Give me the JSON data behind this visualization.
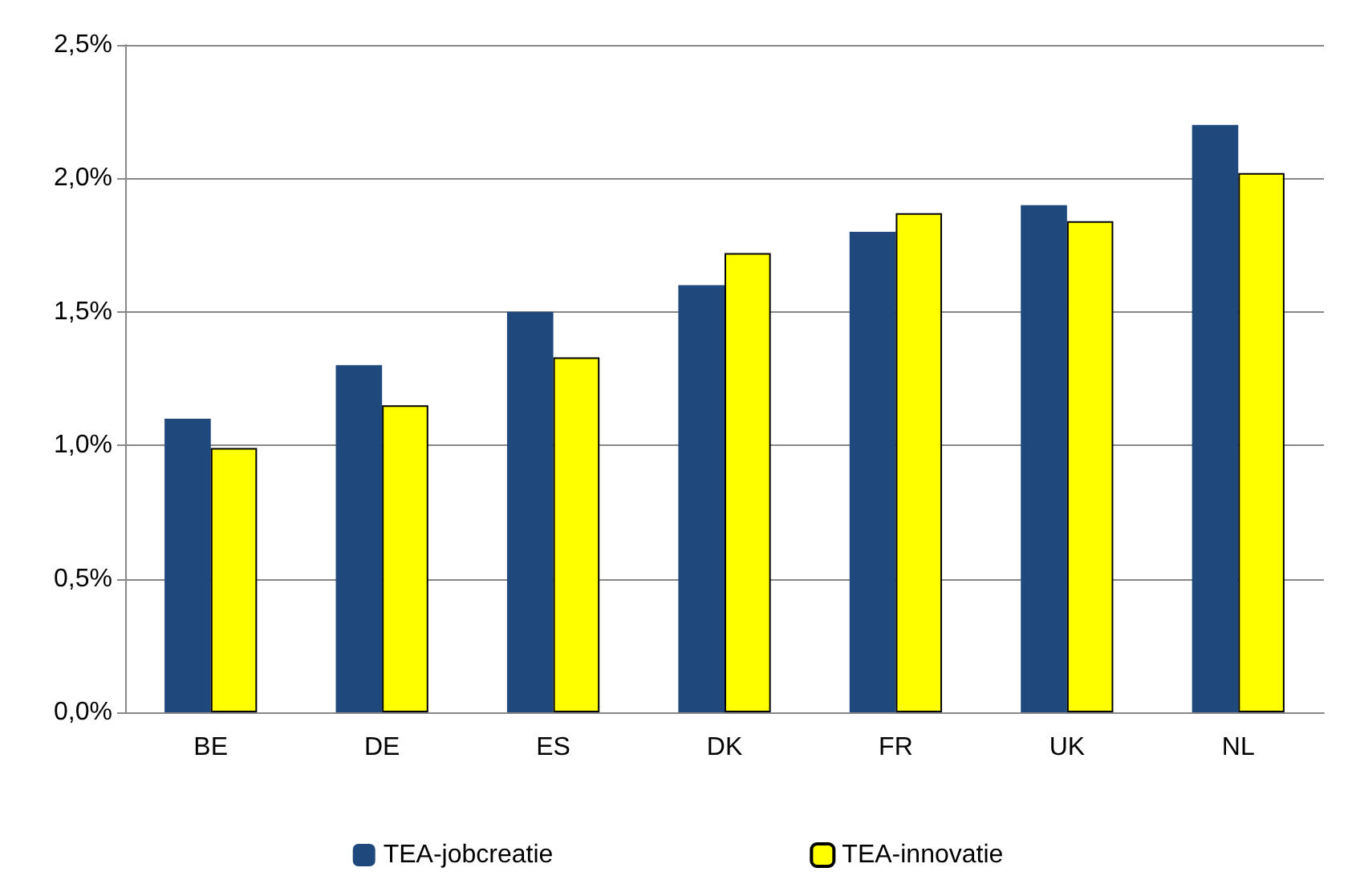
{
  "chart_data": {
    "type": "bar",
    "categories": [
      "BE",
      "DE",
      "ES",
      "DK",
      "FR",
      "UK",
      "NL"
    ],
    "series": [
      {
        "name": "TEA-jobcreatie",
        "color": "#1f497d",
        "values": [
          1.1,
          1.3,
          1.5,
          1.6,
          1.8,
          1.9,
          2.2
        ]
      },
      {
        "name": "TEA-innovatie",
        "color": "#ffff00",
        "values": [
          0.99,
          1.15,
          1.33,
          1.72,
          1.87,
          1.84,
          2.02
        ]
      }
    ],
    "ylim": [
      0,
      2.5
    ],
    "yticks": [
      {
        "value": 0,
        "label": "0,0%"
      },
      {
        "value": 0.5,
        "label": "0,5%"
      },
      {
        "value": 1,
        "label": "1,0%"
      },
      {
        "value": 1.5,
        "label": "1,5%"
      },
      {
        "value": 2,
        "label": "2,0%"
      },
      {
        "value": 2.5,
        "label": "2,5%"
      }
    ],
    "grid": "y",
    "legend": "bottom"
  }
}
